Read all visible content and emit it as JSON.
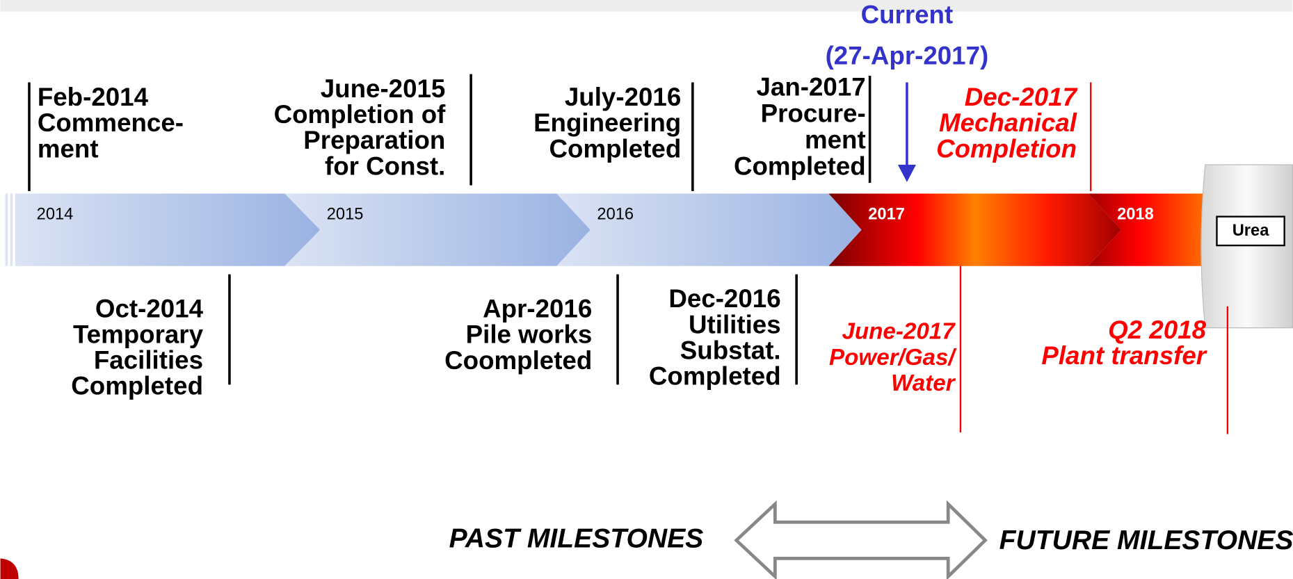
{
  "current": {
    "title": "Current",
    "date": "(27-Apr-2017)"
  },
  "years": [
    "2014",
    "2015",
    "2016",
    "2017",
    "2018"
  ],
  "top_milestones": [
    {
      "date": "Feb-2014",
      "lines": [
        "Commence-",
        "ment"
      ]
    },
    {
      "date": "June-2015",
      "lines": [
        "Completion of",
        "Preparation",
        "for Const."
      ]
    },
    {
      "date": "July-2016",
      "lines": [
        "Engineering",
        "Completed"
      ]
    },
    {
      "date": "Jan-2017",
      "lines": [
        "Procure-",
        "ment",
        "Completed"
      ]
    },
    {
      "date": "Dec-2017",
      "lines": [
        "Mechanical",
        "Completion"
      ]
    }
  ],
  "bottom_milestones": [
    {
      "date": "Oct-2014",
      "lines": [
        "Temporary",
        "Facilities",
        "Completed"
      ]
    },
    {
      "date": "Apr-2016",
      "lines": [
        "Pile works",
        "Coompleted"
      ]
    },
    {
      "date": "Dec-2016",
      "lines": [
        "Utilities",
        "Substat.",
        "Completed"
      ]
    },
    {
      "date": "June-2017",
      "lines": [
        "Power/Gas/",
        "Water"
      ]
    },
    {
      "date": "Q2 2018",
      "lines": [
        "Plant transfer"
      ]
    }
  ],
  "end_label": "Urea",
  "legend": {
    "past": "PAST MILESTONES",
    "future": "FUTURE MILESTONES"
  }
}
